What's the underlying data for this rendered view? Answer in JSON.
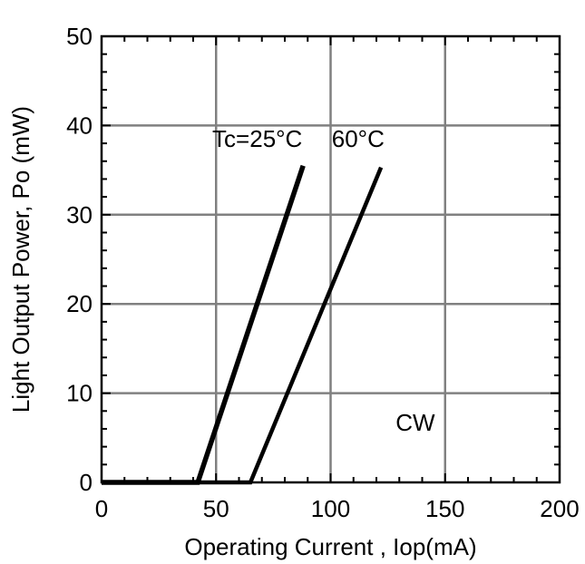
{
  "chart_data": {
    "type": "line",
    "title": "",
    "xlabel": "Operating Current , Iop(mA)",
    "ylabel": "Light Output Power, Po (mW)",
    "xlim": [
      0,
      200
    ],
    "ylim": [
      0,
      50
    ],
    "x_ticks": [
      0,
      50,
      100,
      150,
      200
    ],
    "y_ticks": [
      0,
      10,
      20,
      30,
      40,
      50
    ],
    "x_minor_step": 10,
    "y_minor_step": 2,
    "grid": true,
    "legend": "none",
    "series": [
      {
        "label": "Tc=25°C",
        "points": [
          [
            0,
            0
          ],
          [
            42,
            0
          ],
          [
            88,
            35.5
          ]
        ]
      },
      {
        "label": "60°C",
        "points": [
          [
            0,
            0
          ],
          [
            65,
            0
          ],
          [
            122,
            35.3
          ]
        ]
      }
    ],
    "annotations": [
      {
        "text": "Tc=25°C",
        "x": 68,
        "y": 37.6
      },
      {
        "text": "60°C",
        "x": 112,
        "y": 37.6
      },
      {
        "text": "CW",
        "x": 137,
        "y": 5.8
      }
    ]
  }
}
